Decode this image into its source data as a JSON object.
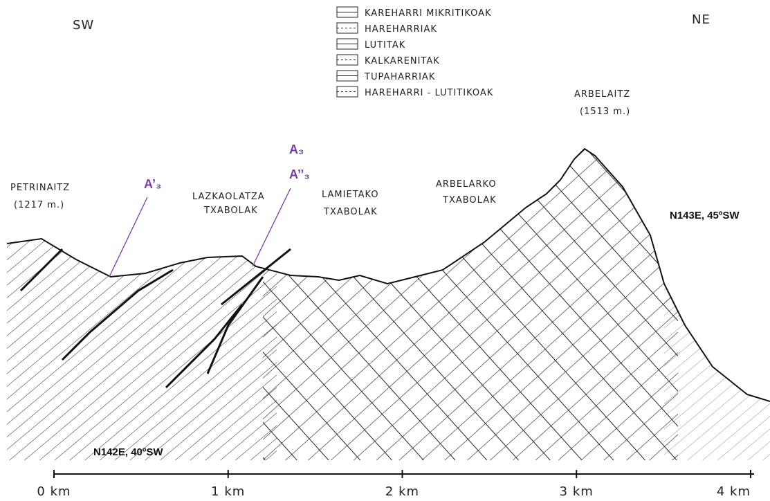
{
  "directions": {
    "left": "SW",
    "right": "NE"
  },
  "legend": [
    "KAREHARRI MIKRITIKOAK",
    "HAREHARRIAK",
    "LUTITAK",
    "KALKARENITAK",
    "TUPAHARRIAK",
    "HAREHARRI - LUTITIKOAK"
  ],
  "peaks": [
    {
      "name": "PETRINAITZ",
      "elevation": "(1217 m.)"
    },
    {
      "name": "ARBELAITZ",
      "elevation": "(1513 m.)"
    }
  ],
  "huts": [
    {
      "name": "LAZKAOLATZA",
      "sub": "TXABOLAK"
    },
    {
      "name": "LAMIETAKO",
      "sub": "TXABOLAK"
    },
    {
      "name": "ARBELARKO",
      "sub": "TXABOLAK"
    }
  ],
  "markers": [
    "A’₃",
    "A₃",
    "A’’₃"
  ],
  "orientations": [
    "N143E, 45ºSW",
    "N142E, 40ºSW"
  ],
  "scale": [
    "0 km",
    "1 km",
    "2 km",
    "3 km",
    "4 km"
  ]
}
